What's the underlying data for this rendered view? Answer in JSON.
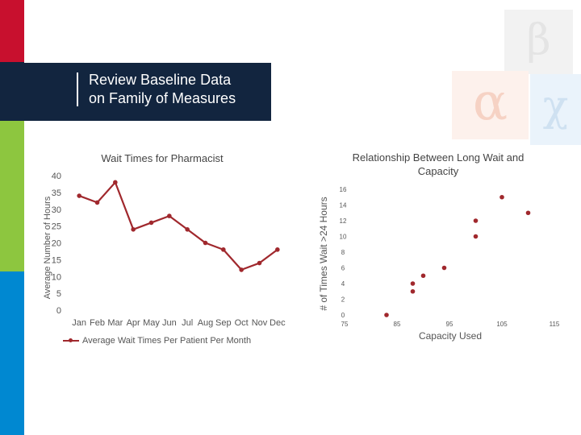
{
  "slide": {
    "title": "Review Baseline Data\non Family of Measures",
    "colors": {
      "red": "#c8102e",
      "navy": "#12253f",
      "green": "#8dc63f",
      "blue": "#0088d1",
      "series": "#a0282d"
    }
  },
  "decor": {
    "glyphs": [
      "β",
      "α",
      "χ"
    ]
  },
  "chart_data": [
    {
      "type": "line",
      "title": "Wait Times for Pharmacist",
      "ylabel": "Average Number of Hours",
      "xlabel": "",
      "categories": [
        "Jan",
        "Feb",
        "Mar",
        "Apr",
        "May",
        "Jun",
        "Jul",
        "Aug",
        "Sep",
        "Oct",
        "Nov",
        "Dec"
      ],
      "series": [
        {
          "name": "Average Wait Times Per Patient Per Month",
          "values": [
            34,
            32,
            38,
            24,
            26,
            28,
            24,
            20,
            18,
            12,
            14,
            18
          ]
        }
      ],
      "ylim": [
        0,
        40
      ],
      "yticks": [
        0,
        5,
        10,
        15,
        20,
        25,
        30,
        35,
        40
      ],
      "grid": false,
      "legend": "bottom",
      "color": "#a0282d"
    },
    {
      "type": "scatter",
      "title": "Relationship Between Long Wait and Capacity",
      "xlabel": "Capacity Used",
      "ylabel": "# of Times Wait >24 Hours",
      "xlim": [
        75,
        115
      ],
      "ylim": [
        0,
        16
      ],
      "xticks": [
        75,
        85,
        95,
        105,
        115
      ],
      "yticks": [
        0,
        2,
        4,
        6,
        8,
        10,
        12,
        14,
        16
      ],
      "grid": false,
      "color": "#a0282d",
      "points": [
        {
          "x": 83,
          "y": 0
        },
        {
          "x": 88,
          "y": 3
        },
        {
          "x": 88,
          "y": 4
        },
        {
          "x": 90,
          "y": 5
        },
        {
          "x": 94,
          "y": 6
        },
        {
          "x": 100,
          "y": 10
        },
        {
          "x": 100,
          "y": 12
        },
        {
          "x": 105,
          "y": 15
        },
        {
          "x": 110,
          "y": 13
        }
      ]
    }
  ]
}
